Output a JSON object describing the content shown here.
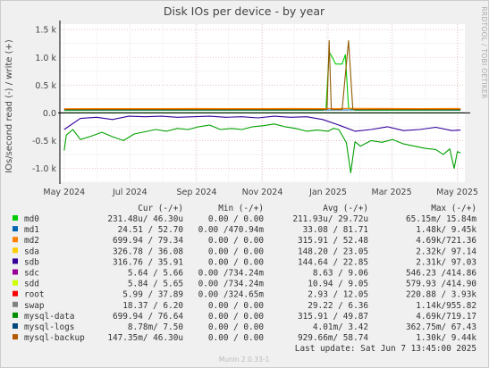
{
  "chart_data": {
    "type": "line",
    "title": "Disk IOs per device - by year",
    "ylabel": "IOs/second read (-) / write (+)",
    "side_label": "RRDTOOL / TOBI OETIKER",
    "ylim": [
      -1250,
      1600
    ],
    "yticks": [
      "1.5 k",
      "1.0 k",
      "0.5 k",
      "0.0",
      "-0.5 k",
      "-1.0 k"
    ],
    "ytick_values": [
      1500,
      1000,
      500,
      0,
      -500,
      -1000
    ],
    "xticks": [
      "May 2024",
      "Jul 2024",
      "Sep 2024",
      "Nov 2024",
      "Jan 2025",
      "Mar 2025",
      "May 2025"
    ],
    "xtick_values": [
      0.0,
      61,
      123,
      184,
      245,
      304,
      365
    ],
    "x_range_days": [
      -4,
      372
    ],
    "grid": true,
    "series": [
      {
        "name": "md0",
        "color": "#00cc00",
        "direction": "write",
        "x": [
          0,
          30,
          60,
          90,
          120,
          150,
          180,
          210,
          240,
          243,
          246,
          249,
          252,
          255,
          258,
          261,
          264,
          270,
          300,
          330,
          360,
          368
        ],
        "y": [
          45,
          46,
          46,
          46,
          46,
          46,
          46,
          46,
          46,
          60,
          1100,
          1000,
          880,
          880,
          880,
          1050,
          90,
          46,
          46,
          46,
          46,
          46
        ]
      },
      {
        "name": "md0",
        "color": "#00cc00",
        "direction": "read",
        "x": [
          0,
          30,
          60,
          90,
          120,
          150,
          180,
          210,
          240,
          270,
          300,
          330,
          360,
          368
        ],
        "y": [
          -0.5,
          -0.3,
          -0.2,
          -0.3,
          -0.2,
          -0.2,
          -0.3,
          -0.2,
          -0.2,
          -0.3,
          -0.2,
          -0.3,
          -0.3,
          -0.2
        ]
      },
      {
        "name": "md1",
        "color": "#0066b3",
        "direction": "write",
        "x": [
          0,
          30,
          60,
          90,
          120,
          150,
          180,
          210,
          240,
          270,
          300,
          330,
          360,
          368
        ],
        "y": [
          55,
          52,
          52,
          53,
          52,
          52,
          52,
          53,
          52,
          55,
          58,
          55,
          53,
          53
        ]
      },
      {
        "name": "md2",
        "color": "#ff8000",
        "direction": "write",
        "x": [
          0,
          30,
          60,
          90,
          120,
          150,
          180,
          210,
          240,
          270,
          300,
          330,
          360,
          368
        ],
        "y": [
          75,
          79,
          79,
          78,
          80,
          79,
          78,
          80,
          79,
          82,
          80,
          79,
          80,
          79
        ]
      },
      {
        "name": "sdb",
        "color": "#330099",
        "direction": "read",
        "x": [
          0,
          15,
          30,
          45,
          60,
          75,
          90,
          105,
          120,
          135,
          150,
          165,
          180,
          195,
          210,
          225,
          240,
          255,
          270,
          285,
          300,
          315,
          330,
          345,
          360,
          368
        ],
        "y": [
          -300,
          -100,
          -80,
          -120,
          -60,
          -70,
          -60,
          -80,
          -70,
          -60,
          -80,
          -70,
          -90,
          -60,
          -80,
          -70,
          -120,
          -220,
          -330,
          -300,
          -250,
          -320,
          -300,
          -260,
          -320,
          -310
        ]
      },
      {
        "name": "mysql-data",
        "color": "#00a000",
        "direction": "read",
        "x": [
          0,
          2,
          8,
          15,
          25,
          35,
          45,
          55,
          65,
          75,
          85,
          95,
          105,
          115,
          125,
          135,
          145,
          155,
          165,
          175,
          185,
          195,
          205,
          215,
          225,
          235,
          245,
          250,
          255,
          262,
          266,
          270,
          275,
          285,
          295,
          305,
          315,
          325,
          335,
          345,
          352,
          358,
          362,
          365,
          368
        ],
        "y": [
          -680,
          -400,
          -300,
          -480,
          -420,
          -350,
          -430,
          -500,
          -380,
          -340,
          -300,
          -330,
          -280,
          -300,
          -250,
          -220,
          -300,
          -280,
          -300,
          -250,
          -230,
          -200,
          -250,
          -280,
          -330,
          -310,
          -330,
          -280,
          -300,
          -540,
          -1080,
          -520,
          -600,
          -500,
          -530,
          -480,
          -560,
          -600,
          -640,
          -660,
          -750,
          -650,
          -1000,
          -700,
          -720
        ]
      },
      {
        "name": "mysql-backup",
        "color": "#8f5a00",
        "direction": "write",
        "x": [
          0,
          30,
          60,
          90,
          120,
          150,
          180,
          210,
          240,
          244,
          246,
          248,
          252,
          258,
          264,
          268,
          300,
          330,
          360,
          368
        ],
        "y": [
          60,
          60,
          60,
          60,
          60,
          60,
          60,
          60,
          60,
          60,
          1300,
          60,
          60,
          60,
          1300,
          60,
          60,
          60,
          60,
          60
        ]
      }
    ]
  },
  "legend": {
    "headers": {
      "cur": "Cur (-/+)",
      "min": "Min (-/+)",
      "avg": "Avg (-/+)",
      "max": "Max (-/+)"
    },
    "rows": [
      {
        "name": "md0",
        "color": "#00cc00",
        "cur": "231.48u/ 46.30u",
        "min": "0.00 /  0.00",
        "avg": "211.93u/ 29.72u",
        "max": "65.15m/ 15.84m"
      },
      {
        "name": "md1",
        "color": "#0066b3",
        "cur": "24.51 / 52.70",
        "min": "0.00 /470.94m",
        "avg": "33.08 / 81.71",
        "max": "1.48k/  9.45k"
      },
      {
        "name": "md2",
        "color": "#ff8000",
        "cur": "699.94 / 79.34",
        "min": "0.00 /  0.00",
        "avg": "315.91 / 52.48",
        "max": "4.69k/721.36"
      },
      {
        "name": "sda",
        "color": "#ffcc00",
        "cur": "326.78 / 36.08",
        "min": "0.00 /  0.00",
        "avg": "148.20 / 23.05",
        "max": "2.32k/ 97.14"
      },
      {
        "name": "sdb",
        "color": "#330099",
        "cur": "316.76 / 35.91",
        "min": "0.00 /  0.00",
        "avg": "144.64 / 22.85",
        "max": "2.31k/ 97.03"
      },
      {
        "name": "sdc",
        "color": "#990099",
        "cur": "5.64 /  5.66",
        "min": "0.00 /734.24m",
        "avg": "8.63 /  9.06",
        "max": "546.23 /414.86"
      },
      {
        "name": "sdd",
        "color": "#ccff00",
        "cur": "5.84 /  5.65",
        "min": "0.00 /734.24m",
        "avg": "10.94 /  9.05",
        "max": "579.93 /414.90"
      },
      {
        "name": "root",
        "color": "#ff0000",
        "cur": "5.99 / 37.89",
        "min": "0.00 /324.65m",
        "avg": "2.93 / 12.05",
        "max": "220.88 /  3.93k"
      },
      {
        "name": "swap",
        "color": "#808080",
        "cur": "18.37 /  6.20",
        "min": "0.00 /  0.00",
        "avg": "29.22 /  6.36",
        "max": "1.14k/955.82"
      },
      {
        "name": "mysql-data",
        "color": "#008f00",
        "cur": "699.94 / 76.64",
        "min": "0.00 /  0.00",
        "avg": "315.91 / 49.87",
        "max": "4.69k/719.17"
      },
      {
        "name": "mysql-logs",
        "color": "#00487d",
        "cur": "8.78m/  7.50",
        "min": "0.00 /  0.00",
        "avg": "4.01m/  3.42",
        "max": "362.75m/ 67.43"
      },
      {
        "name": "mysql-backup",
        "color": "#b35a00",
        "cur": "147.35m/ 46.30u",
        "min": "0.00 /  0.00",
        "avg": "929.66m/ 58.74",
        "max": "1.30k/  9.44k"
      }
    ],
    "last_update": "Last update: Sat Jun  7 13:45:00 2025"
  },
  "footer": "Munin 2.0.33-1"
}
